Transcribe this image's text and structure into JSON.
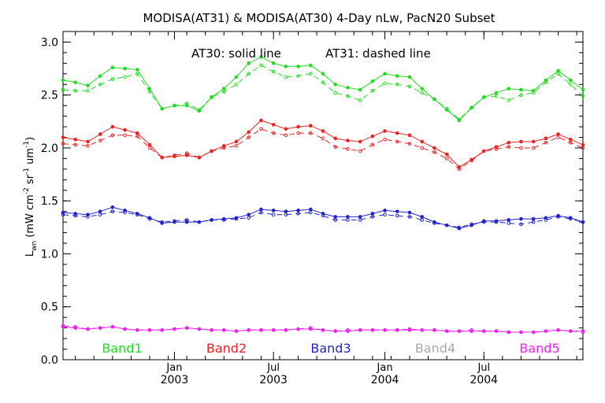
{
  "chart_data": {
    "type": "line",
    "title": "MODISA(AT31) & MODISA(AT30) 4-Day nLw, PacN20 Subset",
    "annotation": {
      "solid": "AT30: solid line",
      "dashed": "AT31: dashed line"
    },
    "ylabel": "L_wn (mW cm^-2 sr^-1 um^-1)",
    "ylabel_parts": {
      "l": "L",
      "sub": "wn",
      "a": " (mW cm",
      "sup1": "-2",
      "b": " sr",
      "sup2": "-1",
      "c": " um",
      "sup3": "-1",
      "d": ")"
    },
    "xlim": [
      0,
      21
    ],
    "ylim": [
      0,
      3.1
    ],
    "yticks": [
      "0.0",
      "0.5",
      "1.0",
      "1.5",
      "2.0",
      "2.5",
      "3.0"
    ],
    "ytick_values": [
      0,
      0.5,
      1.0,
      1.5,
      2.0,
      2.5,
      3.0
    ],
    "xtick_labels": [
      {
        "month": "Jan",
        "year": "2003",
        "x": 4.5
      },
      {
        "month": "Jul",
        "year": "2003",
        "x": 8.5
      },
      {
        "month": "Jan",
        "year": "2004",
        "x": 13
      },
      {
        "month": "Jul",
        "year": "2004",
        "x": 17
      }
    ],
    "x": [
      0,
      0.5,
      1,
      1.5,
      2,
      2.5,
      3,
      3.5,
      4,
      4.5,
      5,
      5.5,
      6,
      6.5,
      7,
      7.5,
      8,
      8.5,
      9,
      9.5,
      10,
      10.5,
      11,
      11.5,
      12,
      12.5,
      13,
      13.5,
      14,
      14.5,
      15,
      15.5,
      16,
      16.5,
      17,
      17.5,
      18,
      18.5,
      19,
      19.5,
      20,
      20.5,
      21
    ],
    "series": [
      {
        "name": "Band1",
        "color": "#22dd22",
        "solid": [
          2.64,
          2.62,
          2.59,
          2.68,
          2.76,
          2.75,
          2.74,
          2.56,
          2.37,
          2.4,
          2.4,
          2.35,
          2.48,
          2.56,
          2.67,
          2.8,
          2.86,
          2.8,
          2.77,
          2.77,
          2.78,
          2.7,
          2.6,
          2.57,
          2.55,
          2.63,
          2.7,
          2.68,
          2.67,
          2.56,
          2.46,
          2.36,
          2.26,
          2.38,
          2.48,
          2.52,
          2.56,
          2.55,
          2.54,
          2.64,
          2.73,
          2.64,
          2.55
        ],
        "dashed": [
          2.55,
          2.54,
          2.54,
          2.6,
          2.65,
          2.67,
          2.7,
          2.53,
          2.37,
          2.4,
          2.42,
          2.36,
          2.48,
          2.53,
          2.6,
          2.7,
          2.78,
          2.72,
          2.67,
          2.68,
          2.7,
          2.62,
          2.52,
          2.49,
          2.45,
          2.54,
          2.61,
          2.6,
          2.58,
          2.52,
          2.46,
          2.37,
          2.27,
          2.38,
          2.48,
          2.49,
          2.45,
          2.5,
          2.52,
          2.62,
          2.7,
          2.6,
          2.49
        ]
      },
      {
        "name": "Band2",
        "color": "#ee2222",
        "solid": [
          2.1,
          2.08,
          2.06,
          2.13,
          2.2,
          2.17,
          2.14,
          2.03,
          1.91,
          1.92,
          1.93,
          1.91,
          1.97,
          2.02,
          2.06,
          2.15,
          2.26,
          2.22,
          2.18,
          2.2,
          2.21,
          2.16,
          2.09,
          2.07,
          2.06,
          2.11,
          2.16,
          2.14,
          2.12,
          2.06,
          2.0,
          1.94,
          1.82,
          1.89,
          1.97,
          2.01,
          2.05,
          2.06,
          2.06,
          2.09,
          2.13,
          2.08,
          2.03
        ],
        "dashed": [
          2.04,
          2.03,
          2.02,
          2.07,
          2.12,
          2.12,
          2.11,
          2.0,
          1.91,
          1.93,
          1.95,
          1.91,
          1.97,
          2.0,
          2.02,
          2.1,
          2.18,
          2.14,
          2.12,
          2.14,
          2.14,
          2.09,
          2.01,
          1.99,
          1.97,
          2.03,
          2.08,
          2.06,
          2.04,
          2.0,
          1.96,
          1.9,
          1.8,
          1.88,
          1.97,
          1.99,
          2.01,
          2.0,
          2.0,
          2.05,
          2.1,
          2.05,
          2.0
        ]
      },
      {
        "name": "Band3",
        "color": "#2222cc",
        "solid": [
          1.39,
          1.38,
          1.37,
          1.4,
          1.44,
          1.41,
          1.38,
          1.34,
          1.29,
          1.3,
          1.3,
          1.3,
          1.32,
          1.33,
          1.34,
          1.37,
          1.42,
          1.41,
          1.4,
          1.41,
          1.42,
          1.38,
          1.35,
          1.35,
          1.35,
          1.38,
          1.41,
          1.4,
          1.39,
          1.35,
          1.3,
          1.27,
          1.24,
          1.27,
          1.31,
          1.31,
          1.32,
          1.33,
          1.33,
          1.34,
          1.36,
          1.34,
          1.3
        ],
        "dashed": [
          1.37,
          1.36,
          1.35,
          1.37,
          1.4,
          1.39,
          1.37,
          1.33,
          1.3,
          1.31,
          1.32,
          1.3,
          1.32,
          1.32,
          1.33,
          1.34,
          1.39,
          1.37,
          1.37,
          1.38,
          1.39,
          1.36,
          1.32,
          1.32,
          1.32,
          1.35,
          1.37,
          1.36,
          1.35,
          1.32,
          1.29,
          1.27,
          1.25,
          1.28,
          1.3,
          1.3,
          1.29,
          1.28,
          1.3,
          1.32,
          1.35,
          1.33,
          1.3
        ]
      },
      {
        "name": "Band4",
        "color": "#aaaaaa",
        "solid": [],
        "dashed": []
      },
      {
        "name": "Band5",
        "color": "#ee22ee",
        "solid": [
          0.31,
          0.3,
          0.29,
          0.3,
          0.31,
          0.29,
          0.28,
          0.28,
          0.28,
          0.29,
          0.3,
          0.29,
          0.28,
          0.28,
          0.27,
          0.28,
          0.28,
          0.28,
          0.28,
          0.29,
          0.29,
          0.28,
          0.27,
          0.27,
          0.28,
          0.28,
          0.28,
          0.28,
          0.28,
          0.28,
          0.28,
          0.27,
          0.27,
          0.27,
          0.27,
          0.27,
          0.26,
          0.26,
          0.26,
          0.27,
          0.28,
          0.27,
          0.27
        ],
        "dashed": [
          0.32,
          0.31,
          0.29,
          0.3,
          0.31,
          0.29,
          0.28,
          0.28,
          0.28,
          0.29,
          0.3,
          0.29,
          0.28,
          0.28,
          0.27,
          0.28,
          0.28,
          0.28,
          0.28,
          0.29,
          0.3,
          0.28,
          0.27,
          0.28,
          0.28,
          0.28,
          0.28,
          0.28,
          0.29,
          0.28,
          0.28,
          0.27,
          0.27,
          0.28,
          0.27,
          0.27,
          0.26,
          0.26,
          0.26,
          0.27,
          0.28,
          0.27,
          0.26
        ]
      }
    ]
  }
}
